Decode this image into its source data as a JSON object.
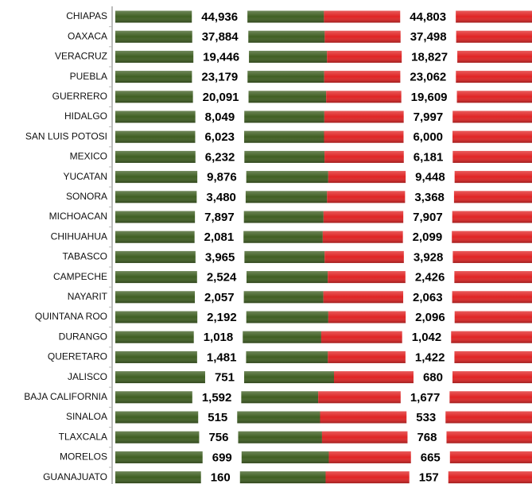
{
  "chart_data": {
    "type": "bar",
    "orientation": "horizontal",
    "stacking": "percent",
    "categories": [
      "CHIAPAS",
      "OAXACA",
      "VERACRUZ",
      "PUEBLA",
      "GUERRERO",
      "HIDALGO",
      "SAN LUIS POTOSI",
      "MEXICO",
      "YUCATAN",
      "SONORA",
      "MICHOACAN",
      "CHIHUAHUA",
      "TABASCO",
      "CAMPECHE",
      "NAYARIT",
      "QUINTANA ROO",
      "DURANGO",
      "QUERETARO",
      "JALISCO",
      "BAJA CALIFORNIA",
      "SINALOA",
      "TLAXCALA",
      "MORELOS",
      "GUANAJUATO"
    ],
    "series": [
      {
        "color": "#3f5f22",
        "values": [
          44936,
          37884,
          19446,
          23179,
          20091,
          8049,
          6023,
          6232,
          9876,
          3480,
          7897,
          2081,
          3965,
          2524,
          2057,
          2192,
          1018,
          1481,
          751,
          1592,
          515,
          756,
          699,
          160
        ],
        "value_labels": [
          "44,936",
          "37,884",
          "19,446",
          "23,179",
          "20,091",
          "8,049",
          "6,023",
          "6,232",
          "9,876",
          "3,480",
          "7,897",
          "2,081",
          "3,965",
          "2,524",
          "2,057",
          "2,192",
          "1,018",
          "1,481",
          "751",
          "1,592",
          "515",
          "756",
          "699",
          "160"
        ]
      },
      {
        "color": "#e02424",
        "values": [
          44803,
          37498,
          18827,
          23062,
          19609,
          7997,
          6000,
          6181,
          9448,
          3368,
          7907,
          2099,
          3928,
          2426,
          2063,
          2096,
          1042,
          1422,
          680,
          1677,
          533,
          768,
          665,
          157
        ],
        "value_labels": [
          "44,803",
          "37,498",
          "18,827",
          "23,062",
          "19,609",
          "7,997",
          "6,000",
          "6,181",
          "9,448",
          "3,368",
          "7,907",
          "2,099",
          "3,928",
          "2,426",
          "2,063",
          "2,096",
          "1,042",
          "1,422",
          "680",
          "1,677",
          "533",
          "768",
          "665",
          "157"
        ]
      }
    ]
  }
}
